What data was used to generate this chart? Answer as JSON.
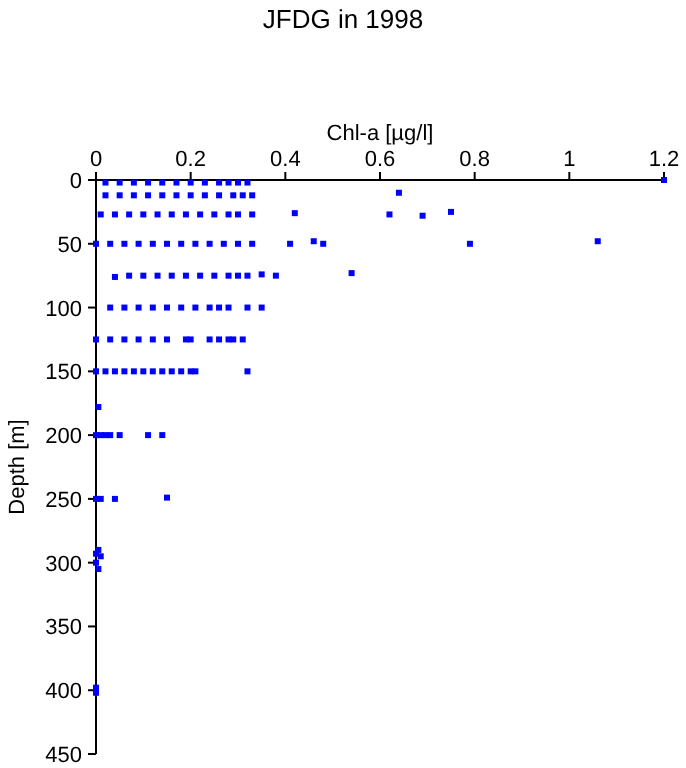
{
  "chart_data": {
    "type": "scatter",
    "title": "JFDG in 1998",
    "xlabel": "Chl-a [µg/l]",
    "ylabel": "Depth [m]",
    "xlim": [
      0,
      1.2
    ],
    "xticks": [
      0,
      0.2,
      0.4,
      0.6,
      0.8,
      1,
      1.2
    ],
    "ylim": [
      450,
      0
    ],
    "yticks": [
      0,
      50,
      100,
      150,
      200,
      250,
      300,
      350,
      400,
      450
    ],
    "grid": false,
    "marker": "square",
    "series": [
      {
        "color": "#0000ff",
        "x": [
          0.02,
          0.05,
          0.08,
          0.11,
          0.14,
          0.17,
          0.2,
          0.23,
          0.26,
          0.28,
          0.3,
          0.32,
          1.2,
          0.02,
          0.05,
          0.08,
          0.11,
          0.14,
          0.17,
          0.2,
          0.23,
          0.26,
          0.29,
          0.31,
          0.33,
          0.64,
          0.01,
          0.04,
          0.07,
          0.1,
          0.13,
          0.16,
          0.19,
          0.22,
          0.25,
          0.28,
          0.3,
          0.33,
          0.42,
          0.62,
          0.69,
          0.75,
          0.0,
          0.03,
          0.06,
          0.09,
          0.12,
          0.15,
          0.18,
          0.21,
          0.24,
          0.27,
          0.3,
          0.33,
          0.41,
          0.46,
          0.48,
          0.79,
          1.06,
          0.04,
          0.07,
          0.1,
          0.13,
          0.16,
          0.19,
          0.22,
          0.25,
          0.28,
          0.3,
          0.32,
          0.35,
          0.38,
          0.54,
          0.03,
          0.06,
          0.09,
          0.12,
          0.15,
          0.18,
          0.21,
          0.24,
          0.26,
          0.28,
          0.32,
          0.35,
          0.0,
          0.03,
          0.06,
          0.09,
          0.12,
          0.15,
          0.19,
          0.2,
          0.24,
          0.26,
          0.28,
          0.29,
          0.31,
          0.0,
          0.02,
          0.04,
          0.06,
          0.08,
          0.1,
          0.12,
          0.14,
          0.16,
          0.18,
          0.2,
          0.21,
          0.32,
          0.005,
          0.0,
          0.01,
          0.02,
          0.03,
          0.05,
          0.11,
          0.14,
          0.0,
          0.01,
          0.04,
          0.15,
          0.0,
          0.005,
          0.01,
          0.0,
          0.005,
          0.0,
          0.0
        ],
        "values": [
          2,
          2,
          2,
          2,
          2,
          2,
          2,
          2,
          2,
          2,
          2,
          2,
          0,
          12,
          12,
          12,
          12,
          12,
          12,
          12,
          12,
          12,
          12,
          12,
          12,
          10,
          27,
          27,
          27,
          27,
          27,
          27,
          27,
          27,
          27,
          27,
          27,
          27,
          26,
          27,
          28,
          25,
          50,
          50,
          50,
          50,
          50,
          50,
          50,
          50,
          50,
          50,
          50,
          50,
          50,
          48,
          50,
          50,
          48,
          76,
          75,
          75,
          75,
          75,
          75,
          75,
          75,
          75,
          75,
          75,
          74,
          75,
          73,
          100,
          100,
          100,
          100,
          100,
          100,
          100,
          100,
          100,
          100,
          100,
          100,
          125,
          125,
          125,
          125,
          125,
          125,
          125,
          125,
          125,
          125,
          125,
          125,
          125,
          150,
          150,
          150,
          150,
          150,
          150,
          150,
          150,
          150,
          150,
          150,
          150,
          150,
          178,
          200,
          200,
          200,
          200,
          200,
          200,
          200,
          250,
          250,
          250,
          249,
          293,
          290,
          295,
          300,
          305,
          398,
          402
        ]
      }
    ]
  }
}
